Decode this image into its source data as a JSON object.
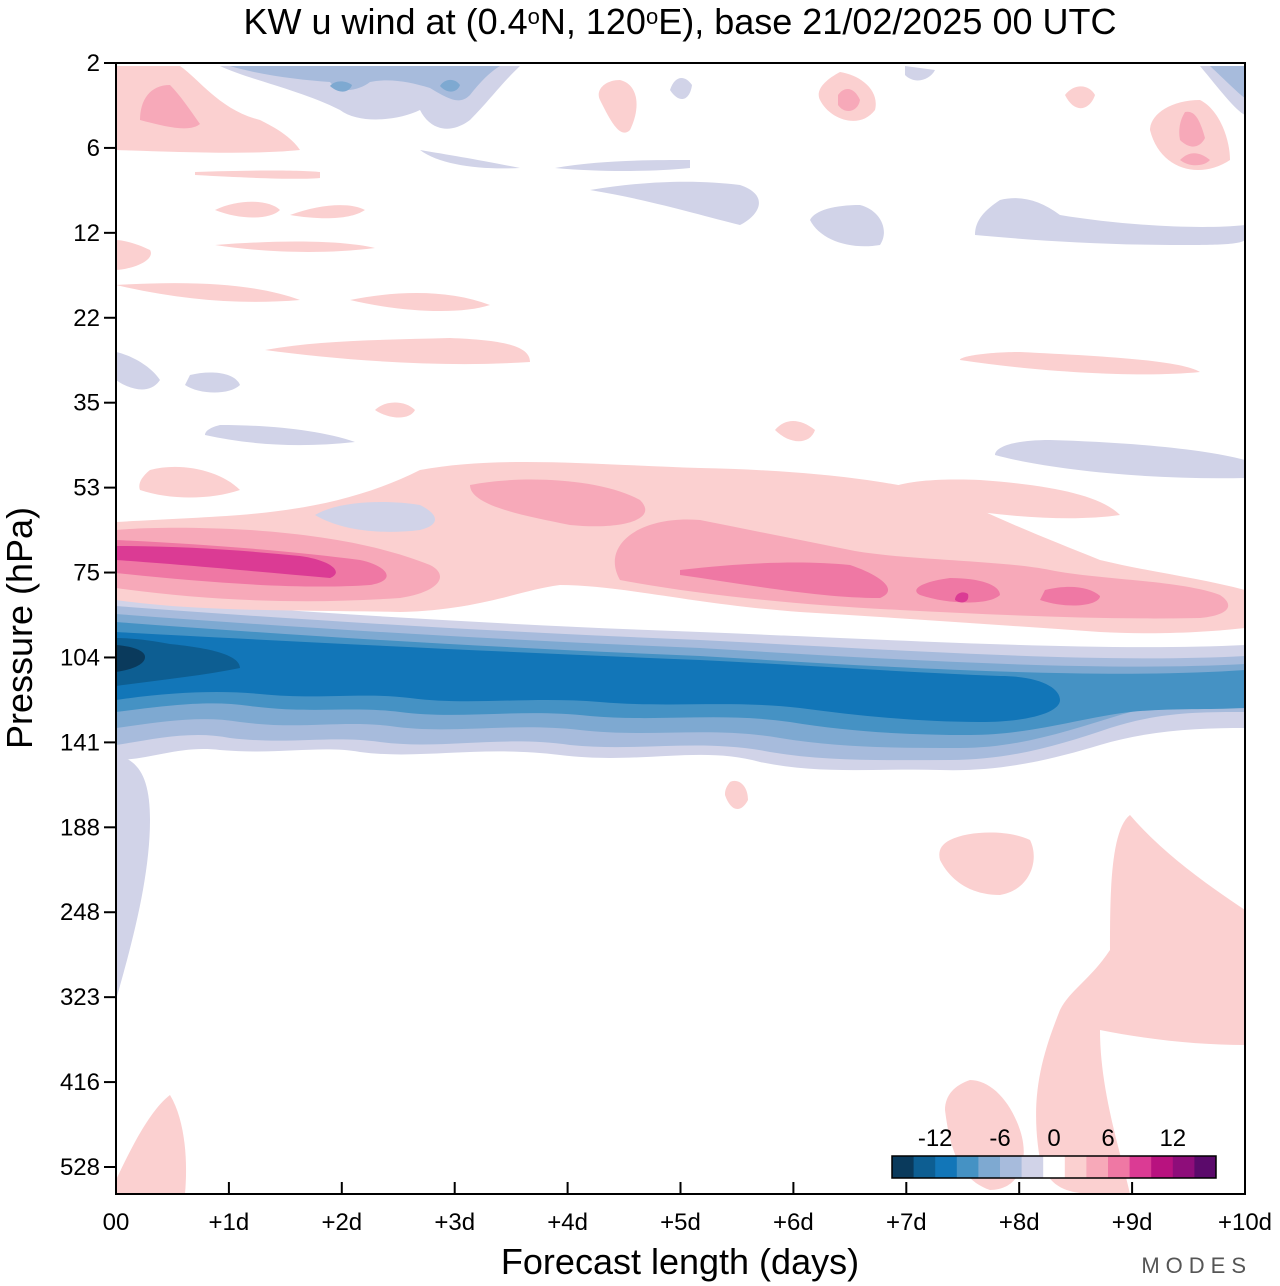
{
  "chart_data": {
    "type": "heatmap",
    "title": "KW u wind at (0.4°N, 120°E),  base 21/02/2025  00 UTC",
    "xlabel": "Forecast length (days)",
    "ylabel": "Pressure (hPa)",
    "x_ticks": [
      "00",
      "+1d",
      "+2d",
      "+3d",
      "+4d",
      "+5d",
      "+6d",
      "+7d",
      "+8d",
      "+9d",
      "+10d"
    ],
    "xlim": [
      0,
      10
    ],
    "y_ticks": [
      2,
      6,
      12,
      22,
      35,
      53,
      75,
      104,
      141,
      188,
      248,
      323,
      416,
      528
    ],
    "y_scale": "categorical pressure levels (top = 2 hPa, bottom = 528 hPa)",
    "colorbar": {
      "labels": [
        "-12",
        "-6",
        "0",
        "6",
        "12"
      ],
      "label_values": [
        -12,
        -6,
        0,
        6,
        12
      ],
      "bounds": [
        -16,
        -14,
        -12,
        -10,
        -8,
        -6,
        -4,
        -2,
        2,
        4,
        6,
        8,
        10,
        12,
        14,
        16
      ],
      "colors": [
        "#0a3a5c",
        "#0d5e92",
        "#1276b8",
        "#4592c4",
        "#7ea9d1",
        "#a7bbdc",
        "#d1d3e8",
        "#ffffff",
        "#fbd0d0",
        "#f7a9b9",
        "#ef78a4",
        "#db3b94",
        "#b8127f",
        "#8e0d7a",
        "#5b0a6b"
      ],
      "placement": "bottom-right"
    },
    "features": [
      {
        "desc": "strong easterly (negative) band",
        "pressure_hPa": [
          90,
          141
        ],
        "x_days": [
          0,
          10
        ],
        "min_value": -16
      },
      {
        "desc": "westerly (positive) band",
        "pressure_hPa": [
          60,
          90
        ],
        "x_days": [
          0,
          10
        ],
        "max_value": 12
      },
      {
        "desc": "weak positive patch, lower troposphere",
        "pressure_hPa": [
          188,
          528
        ],
        "x_days": [
          7.5,
          10
        ],
        "value": 2
      }
    ]
  },
  "watermark": "MODES"
}
